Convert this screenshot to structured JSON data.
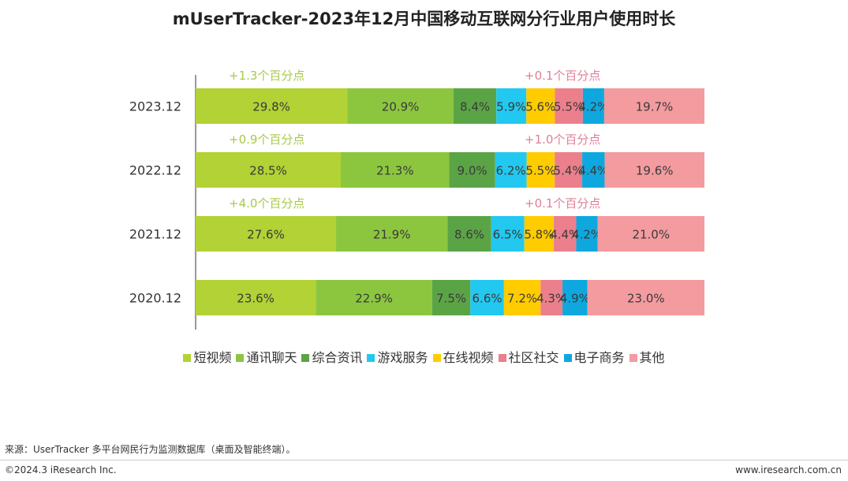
{
  "title": "mUserTracker-2023年12月中国移动互联网分行业用户使用时长",
  "chart_data": {
    "type": "bar",
    "orientation": "horizontal-stacked-100",
    "categories": [
      "2023.12",
      "2022.12",
      "2021.12",
      "2020.12"
    ],
    "series": [
      {
        "name": "短视频",
        "color": "#b2d235",
        "values": [
          29.8,
          28.5,
          27.6,
          23.6
        ]
      },
      {
        "name": "通讯聊天",
        "color": "#8cc63f",
        "values": [
          20.9,
          21.3,
          21.9,
          22.9
        ]
      },
      {
        "name": "综合资讯",
        "color": "#5ba446",
        "values": [
          8.4,
          9.0,
          8.6,
          7.5
        ]
      },
      {
        "name": "游戏服务",
        "color": "#22c8ef",
        "values": [
          5.9,
          6.2,
          6.5,
          6.6
        ]
      },
      {
        "name": "在线视频",
        "color": "#ffcc00",
        "values": [
          5.6,
          5.5,
          5.8,
          7.2
        ]
      },
      {
        "name": "社区社交",
        "color": "#ec7f8c",
        "values": [
          5.5,
          5.4,
          4.4,
          4.3
        ]
      },
      {
        "name": "电子商务",
        "color": "#0ea8df",
        "values": [
          4.2,
          4.4,
          4.2,
          4.9
        ]
      },
      {
        "name": "其他",
        "color": "#f39b9f",
        "values": [
          19.7,
          19.6,
          21.0,
          23.0
        ]
      }
    ],
    "annotations": [
      {
        "category": "2023.12",
        "left": "+1.3个百分点",
        "right": "+0.1个百分点"
      },
      {
        "category": "2022.12",
        "left": "+0.9个百分点",
        "right": "+1.0个百分点"
      },
      {
        "category": "2021.12",
        "left": "+4.0个百分点",
        "right": "+0.1个百分点"
      }
    ],
    "annotation_colors": {
      "left": "#a8c94a",
      "right": "#e07f96"
    },
    "legend": "bottom"
  },
  "footer": {
    "source": "来源：UserTracker 多平台网民行为监测数据库（桌面及智能终端）。",
    "copyright": "©2024.3 iResearch Inc.",
    "site": "www.iresearch.com.cn"
  }
}
